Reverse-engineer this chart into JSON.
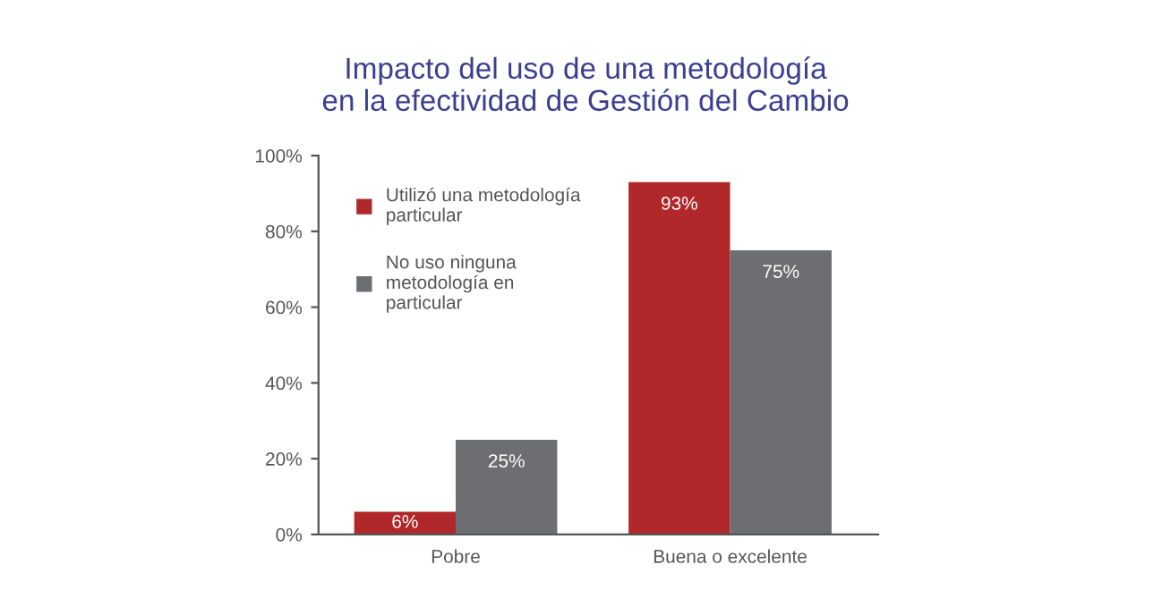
{
  "chart_data": {
    "type": "bar",
    "title": "Impacto del uso de una metodología\nen la efectividad de Gestión del Cambio",
    "categories": [
      "Pobre",
      "Buena o excelente"
    ],
    "series": [
      {
        "name": "Utilizó una metodología\nparticular",
        "color": "#b0282a",
        "values": [
          6,
          93
        ],
        "value_labels": [
          "6%",
          "93%"
        ]
      },
      {
        "name": "No uso ninguna\nmetodología en\nparticular",
        "color": "#6d6e71",
        "values": [
          25,
          75
        ],
        "value_labels": [
          "25%",
          "75%"
        ]
      }
    ],
    "ylim": [
      0,
      100
    ],
    "yticks": [
      {
        "value": 0,
        "label": "0%"
      },
      {
        "value": 20,
        "label": "20%"
      },
      {
        "value": 40,
        "label": "40%"
      },
      {
        "value": 60,
        "label": "60%"
      },
      {
        "value": 80,
        "label": "80%"
      },
      {
        "value": 100,
        "label": "100%"
      }
    ],
    "grid": false,
    "legend": "top left"
  }
}
